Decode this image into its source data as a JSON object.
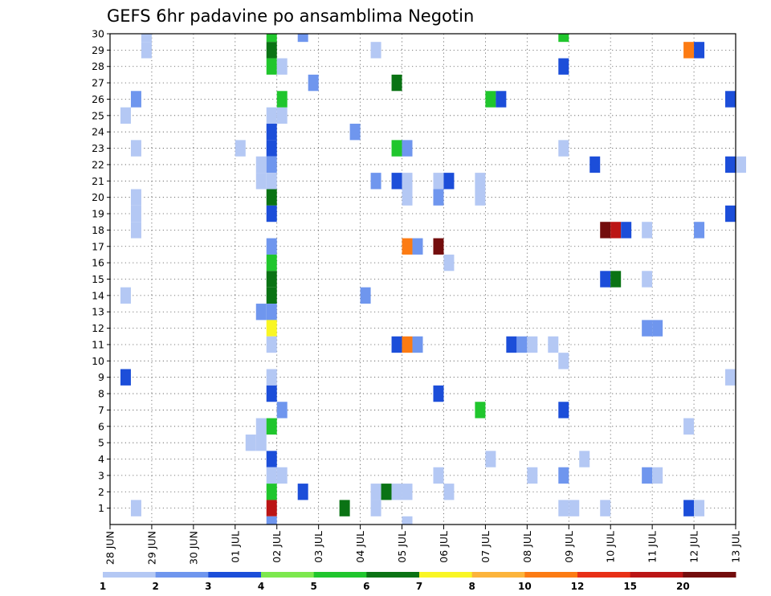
{
  "chart_data": {
    "type": "heatmap",
    "title": "GEFS 6hr padavine po ansamblima Negotin",
    "xlabel": "",
    "ylabel": "",
    "x_tick_labels": [
      "28 JUN",
      "29 JUN",
      "30 JUN",
      "01 JUL",
      "02 JUL",
      "03 JUL",
      "04 JUL",
      "05 JUL",
      "06 JUL",
      "07 JUL",
      "08 JUL",
      "09 JUL",
      "10 JUL",
      "11 JUL",
      "12 JUL",
      "13 JUL"
    ],
    "y_tick_labels": [
      "1",
      "2",
      "3",
      "4",
      "5",
      "6",
      "7",
      "8",
      "9",
      "10",
      "11",
      "12",
      "13",
      "14",
      "15",
      "16",
      "17",
      "18",
      "19",
      "20",
      "21",
      "22",
      "23",
      "24",
      "25",
      "26",
      "27",
      "28",
      "29",
      "30"
    ],
    "x_range_days": [
      0,
      15
    ],
    "y_range_members": [
      0,
      30
    ],
    "grid": "dotted",
    "colorbar": {
      "placement": "bottom",
      "levels": [
        "1",
        "2",
        "3",
        "4",
        "5",
        "6",
        "7",
        "8",
        "10",
        "12",
        "15",
        "20"
      ],
      "colors": [
        "#b4c8f4",
        "#6f96ee",
        "#1c4ed9",
        "#7de84e",
        "#20c62d",
        "#0a7314",
        "#f9f624",
        "#fcb43b",
        "#fc7b13",
        "#e83016",
        "#bb1515",
        "#730d0d"
      ]
    },
    "cells_format": "[x_day_offset_from_28_JUN, ensemble_member, color_class 1-12]",
    "cells": [
      [
        0.875,
        30,
        1
      ],
      [
        0.875,
        29,
        1
      ],
      [
        0.625,
        26,
        2
      ],
      [
        0.375,
        25,
        1
      ],
      [
        0.625,
        23,
        1
      ],
      [
        0.625,
        20,
        1
      ],
      [
        0.625,
        19,
        1
      ],
      [
        0.625,
        18,
        1
      ],
      [
        0.375,
        14,
        1
      ],
      [
        0.375,
        9,
        3
      ],
      [
        0.625,
        1,
        1
      ],
      [
        3.125,
        23,
        1
      ],
      [
        3.625,
        22,
        1
      ],
      [
        3.625,
        21,
        1
      ],
      [
        3.875,
        25,
        1
      ],
      [
        4.125,
        25,
        1
      ],
      [
        3.625,
        6,
        1
      ],
      [
        3.375,
        5,
        1
      ],
      [
        3.625,
        5,
        1
      ],
      [
        3.625,
        13,
        2
      ],
      [
        3.875,
        30,
        5
      ],
      [
        3.875,
        29,
        6
      ],
      [
        3.875,
        28,
        5
      ],
      [
        3.875,
        23,
        3
      ],
      [
        3.875,
        22,
        2
      ],
      [
        3.875,
        21,
        1
      ],
      [
        3.875,
        20,
        6
      ],
      [
        3.875,
        19,
        3
      ],
      [
        3.875,
        17,
        2
      ],
      [
        3.875,
        16,
        5
      ],
      [
        3.875,
        15,
        6
      ],
      [
        3.875,
        14,
        6
      ],
      [
        3.875,
        13,
        2
      ],
      [
        3.875,
        12,
        7
      ],
      [
        3.875,
        11,
        1
      ],
      [
        3.875,
        9,
        1
      ],
      [
        3.875,
        8,
        3
      ],
      [
        3.875,
        6,
        5
      ],
      [
        3.875,
        4,
        3
      ],
      [
        3.875,
        3,
        1
      ],
      [
        3.875,
        2,
        5
      ],
      [
        3.875,
        1,
        11
      ],
      [
        3.875,
        0,
        2
      ],
      [
        3.875,
        24,
        3
      ],
      [
        4.125,
        28,
        1
      ],
      [
        4.125,
        26,
        5
      ],
      [
        4.125,
        7,
        2
      ],
      [
        4.125,
        3,
        1
      ],
      [
        4.625,
        30,
        2
      ],
      [
        4.875,
        27,
        2
      ],
      [
        4.625,
        2,
        3
      ],
      [
        5.625,
        1,
        6
      ],
      [
        5.875,
        24,
        2
      ],
      [
        6.125,
        14,
        2
      ],
      [
        6.375,
        29,
        1
      ],
      [
        6.375,
        21,
        2
      ],
      [
        6.375,
        2,
        1
      ],
      [
        6.375,
        1,
        1
      ],
      [
        6.625,
        2,
        6
      ],
      [
        6.875,
        2,
        1
      ],
      [
        7.125,
        2,
        1
      ],
      [
        6.875,
        27,
        6
      ],
      [
        6.875,
        23,
        5
      ],
      [
        7.125,
        23,
        2
      ],
      [
        6.875,
        21,
        3
      ],
      [
        7.125,
        21,
        1
      ],
      [
        7.125,
        20,
        1
      ],
      [
        7.125,
        17,
        9
      ],
      [
        7.375,
        17,
        2
      ],
      [
        6.875,
        11,
        3
      ],
      [
        7.125,
        11,
        9
      ],
      [
        7.375,
        11,
        2
      ],
      [
        7.125,
        0,
        1
      ],
      [
        7.875,
        21,
        1
      ],
      [
        8.125,
        21,
        3
      ],
      [
        7.875,
        20,
        2
      ],
      [
        7.875,
        17,
        12
      ],
      [
        8.125,
        16,
        1
      ],
      [
        7.875,
        8,
        3
      ],
      [
        7.875,
        3,
        1
      ],
      [
        8.125,
        2,
        1
      ],
      [
        8.875,
        21,
        1
      ],
      [
        8.875,
        20,
        1
      ],
      [
        8.875,
        7,
        5
      ],
      [
        9.125,
        26,
        5
      ],
      [
        9.375,
        26,
        3
      ],
      [
        9.125,
        4,
        1
      ],
      [
        9.625,
        11,
        3
      ],
      [
        9.875,
        11,
        2
      ],
      [
        10.125,
        11,
        1
      ],
      [
        10.125,
        3,
        1
      ],
      [
        10.625,
        11,
        1
      ],
      [
        10.875,
        30,
        5
      ],
      [
        10.875,
        28,
        3
      ],
      [
        10.875,
        23,
        1
      ],
      [
        10.875,
        10,
        1
      ],
      [
        10.875,
        7,
        3
      ],
      [
        10.875,
        3,
        2
      ],
      [
        10.875,
        1,
        1
      ],
      [
        11.125,
        1,
        1
      ],
      [
        11.375,
        4,
        1
      ],
      [
        11.625,
        22,
        3
      ],
      [
        11.875,
        18,
        12
      ],
      [
        12.125,
        18,
        11
      ],
      [
        12.375,
        18,
        3
      ],
      [
        11.875,
        15,
        3
      ],
      [
        12.125,
        15,
        6
      ],
      [
        11.875,
        1,
        1
      ],
      [
        12.875,
        18,
        1
      ],
      [
        12.875,
        15,
        1
      ],
      [
        12.875,
        12,
        2
      ],
      [
        13.125,
        12,
        2
      ],
      [
        12.875,
        3,
        2
      ],
      [
        13.125,
        3,
        1
      ],
      [
        13.875,
        29,
        9
      ],
      [
        14.125,
        29,
        3
      ],
      [
        14.125,
        18,
        2
      ],
      [
        13.875,
        6,
        1
      ],
      [
        13.875,
        1,
        3
      ],
      [
        14.125,
        1,
        1
      ],
      [
        14.875,
        26,
        3
      ],
      [
        14.875,
        22,
        3
      ],
      [
        15.125,
        22,
        1
      ],
      [
        14.875,
        19,
        3
      ],
      [
        14.875,
        9,
        1
      ]
    ]
  }
}
